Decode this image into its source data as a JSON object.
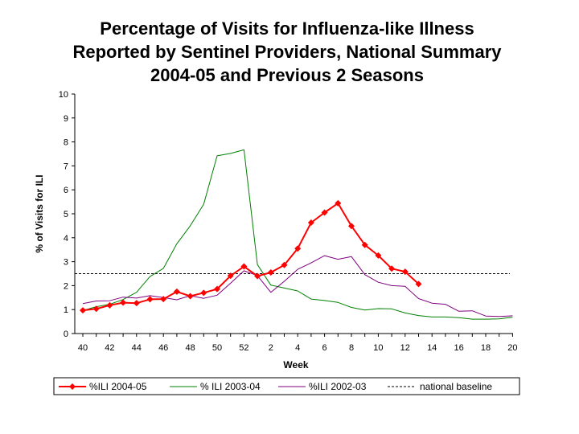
{
  "chart_data": {
    "type": "line",
    "title_lines": [
      "Percentage of Visits for Influenza-like Illness",
      "Reported by Sentinel Providers, National Summary",
      "2004-05 and Previous 2 Seasons"
    ],
    "xlabel": "Week",
    "ylabel": "% of Visits for ILI",
    "ylim": [
      0,
      10
    ],
    "yticks": [
      0,
      1,
      2,
      3,
      4,
      5,
      6,
      7,
      8,
      9,
      10
    ],
    "weeks": [
      40,
      41,
      42,
      43,
      44,
      45,
      46,
      47,
      48,
      49,
      50,
      51,
      52,
      1,
      2,
      3,
      4,
      5,
      6,
      7,
      8,
      9,
      10,
      11,
      12,
      13,
      14,
      15,
      16,
      17,
      18,
      19,
      20
    ],
    "xtick_labels": [
      "40",
      "42",
      "44",
      "46",
      "48",
      "50",
      "52",
      "2",
      "4",
      "6",
      "8",
      "10",
      "12",
      "14",
      "16",
      "18",
      "20"
    ],
    "grid": false,
    "legend_position": "bottom",
    "series": [
      {
        "name": "%ILI 2004-05",
        "color": "#ff0000",
        "marker": "diamond",
        "values": [
          0.97,
          1.03,
          1.18,
          1.29,
          1.27,
          1.43,
          1.44,
          1.75,
          1.56,
          1.7,
          1.86,
          2.41,
          2.8,
          2.4,
          2.55,
          2.86,
          3.55,
          4.63,
          5.05,
          5.44,
          4.49,
          3.7,
          3.26,
          2.71,
          2.58,
          2.07
        ]
      },
      {
        "name": "% ILI 2003-04",
        "color": "#008000",
        "marker": "none",
        "values": [
          0.96,
          1.12,
          1.22,
          1.42,
          1.72,
          2.38,
          2.72,
          3.75,
          4.5,
          5.4,
          7.42,
          7.52,
          7.67,
          2.88,
          2.02,
          1.9,
          1.78,
          1.44,
          1.38,
          1.3,
          1.09,
          0.98,
          1.04,
          1.03,
          0.86,
          0.75,
          0.69,
          0.69,
          0.66,
          0.6,
          0.6,
          0.61,
          0.68
        ]
      },
      {
        "name": "%ILI 2002-03",
        "color": "#800080",
        "marker": "none",
        "values": [
          1.25,
          1.36,
          1.37,
          1.52,
          1.48,
          1.58,
          1.5,
          1.41,
          1.58,
          1.47,
          1.6,
          2.1,
          2.62,
          2.42,
          1.72,
          2.18,
          2.68,
          2.95,
          3.25,
          3.1,
          3.21,
          2.46,
          2.14,
          2.0,
          1.97,
          1.46,
          1.27,
          1.22,
          0.93,
          0.95,
          0.73,
          0.71,
          0.74
        ]
      },
      {
        "name": "national baseline",
        "color": "#000000",
        "style": "dashed",
        "value": 2.5
      }
    ]
  }
}
